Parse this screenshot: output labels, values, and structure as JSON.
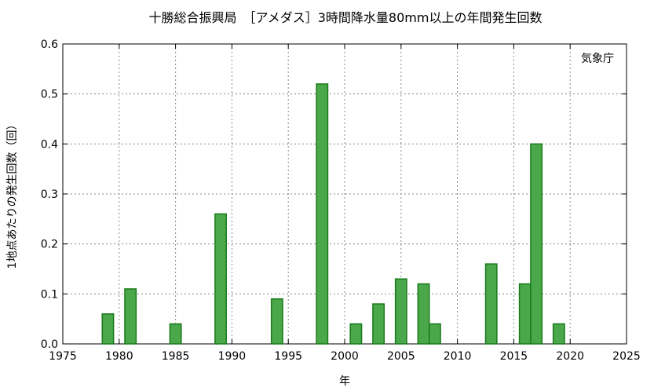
{
  "chart_data": {
    "type": "bar",
    "title": "十勝総合振興局　［アメダス］3時間降水量80mm以上の年間発生回数",
    "xlabel": "年",
    "ylabel": "1地点あたりの発生回数（回）",
    "credit": "気象庁",
    "xlim": [
      1975,
      2025
    ],
    "ylim": [
      0,
      0.6
    ],
    "xticks": [
      1975,
      1980,
      1985,
      1990,
      1995,
      2000,
      2005,
      2010,
      2015,
      2020,
      2025
    ],
    "xtick_labels": [
      "1975",
      "1980",
      "1985",
      "1990",
      "1995",
      "2000",
      "2005",
      "2010",
      "2015",
      "2020",
      "2025"
    ],
    "yticks": [
      0,
      0.1,
      0.2,
      0.3,
      0.4,
      0.5,
      0.6
    ],
    "ytick_labels": [
      "0.0",
      "0.1",
      "0.2",
      "0.3",
      "0.4",
      "0.5",
      "0.6"
    ],
    "grid": true,
    "bar_color": "#4aa84a",
    "bar_edge_color": "#1a7a1a",
    "x": [
      1979,
      1981,
      1985,
      1989,
      1994,
      1998,
      2001,
      2003,
      2005,
      2007,
      2008,
      2013,
      2016,
      2017,
      2019
    ],
    "values": [
      0.06,
      0.11,
      0.04,
      0.26,
      0.09,
      0.52,
      0.04,
      0.08,
      0.13,
      0.12,
      0.04,
      0.16,
      0.12,
      0.4,
      0.04
    ]
  }
}
